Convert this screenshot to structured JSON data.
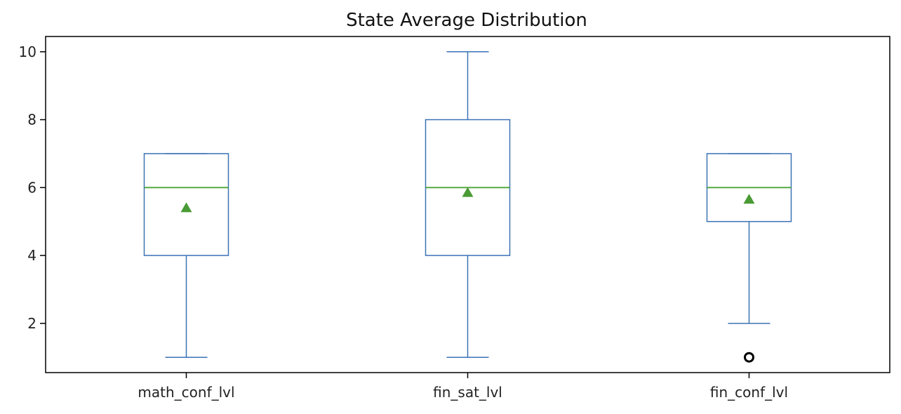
{
  "chart_data": {
    "type": "box",
    "title": "State Average Distribution",
    "xlabel": "",
    "ylabel": "",
    "categories": [
      "math_conf_lvl",
      "fin_sat_lvl",
      "fin_conf_lvl"
    ],
    "boxes": [
      {
        "category": "math_conf_lvl",
        "whisker_low": 1,
        "q1": 4,
        "median": 6,
        "q3": 7,
        "whisker_high": 7,
        "mean": 5.4,
        "outliers": []
      },
      {
        "category": "fin_sat_lvl",
        "whisker_low": 1,
        "q1": 4,
        "median": 6,
        "q3": 8,
        "whisker_high": 10,
        "mean": 5.85,
        "outliers": []
      },
      {
        "category": "fin_conf_lvl",
        "whisker_low": 2,
        "q1": 5,
        "median": 6,
        "q3": 7,
        "whisker_high": 7,
        "mean": 5.65,
        "outliers": [
          1
        ]
      }
    ],
    "ylim": [
      0.55,
      10.45
    ],
    "yticks": [
      "2",
      "4",
      "6",
      "8",
      "10"
    ],
    "grid": false,
    "colors": {
      "box": "#3b72b5",
      "median": "#4ca337",
      "mean": "#4a9a35",
      "outlier": "#000000",
      "axes": "#000000"
    }
  }
}
